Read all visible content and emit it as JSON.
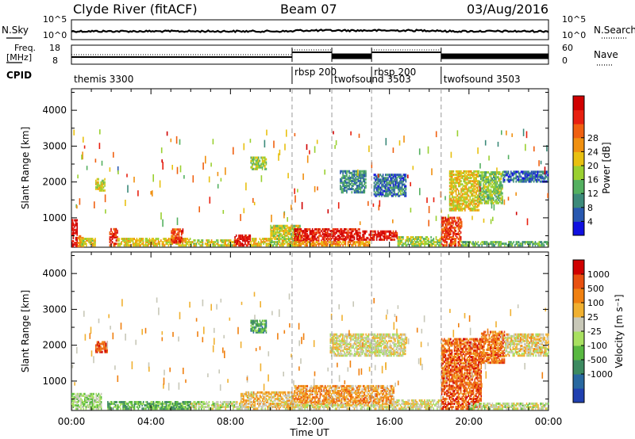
{
  "header": {
    "title": "Clyde River (fitACF)",
    "beam": "Beam 07",
    "date": "03/Aug/2016"
  },
  "strip": {
    "nsky_label": "N.Sky",
    "nsearch_label": "N.Search",
    "freq_label_1": "Freq.",
    "freq_label_2": "[MHz]",
    "nave_label": "Nave",
    "cpid_label": "CPID",
    "nsky_ticks": [
      "10^5",
      "10^0"
    ],
    "nsearch_ticks": [
      "10^5",
      "10^0"
    ],
    "freq_ticks": [
      "18",
      "8"
    ],
    "nave_ticks": [
      "60",
      "0"
    ],
    "cpid_segments": [
      {
        "label": "themis 3300",
        "start_h": 0,
        "end_h": 11.1
      },
      {
        "label": "rbsp 200",
        "start_h": 11.1,
        "end_h": 13.1
      },
      {
        "label": "twofsound 3503",
        "start_h": 13.1,
        "end_h": 15.1
      },
      {
        "label": "rbsp 200",
        "start_h": 15.1,
        "end_h": 18.6
      },
      {
        "label": "twofsound 3503",
        "start_h": 18.6,
        "end_h": 24
      }
    ]
  },
  "axes": {
    "ylabel": "Slant Range [km]",
    "xlabel": "Time UT",
    "xticks": [
      "00:00",
      "04:00",
      "08:00",
      "12:00",
      "16:00",
      "20:00",
      "00:00"
    ],
    "yticks": [
      "1000",
      "2000",
      "3000",
      "4000"
    ]
  },
  "chart_data": [
    {
      "type": "heatmap",
      "name": "power",
      "xlabel": "Time UT",
      "ylabel": "Slant Range [km]",
      "xlim_hours": [
        0,
        24
      ],
      "ylim_km": [
        180,
        4600
      ],
      "colorbar": {
        "label": "Power [dB]",
        "ticks": [
          "4",
          "8",
          "12",
          "16",
          "20",
          "24",
          "28"
        ],
        "colors": [
          "#1010e0",
          "#2858b0",
          "#3c8a7a",
          "#54b060",
          "#9ad030",
          "#e8c010",
          "#f09010",
          "#f06010",
          "#e82010",
          "#d00000"
        ]
      },
      "regions": [
        {
          "t0": 0.0,
          "t1": 0.3,
          "r0": 200,
          "r1": 950,
          "level": 0.95
        },
        {
          "t0": 0.3,
          "t1": 0.6,
          "r0": 200,
          "r1": 500,
          "level": 0.7
        },
        {
          "t0": 0.4,
          "t1": 1.2,
          "r0": 220,
          "r1": 420,
          "level": 0.5
        },
        {
          "t0": 1.2,
          "t1": 1.7,
          "r0": 1750,
          "r1": 2100,
          "level": 0.5
        },
        {
          "t0": 1.9,
          "t1": 2.3,
          "r0": 220,
          "r1": 700,
          "level": 0.85
        },
        {
          "t0": 2.3,
          "t1": 6.0,
          "r0": 220,
          "r1": 420,
          "level": 0.55
        },
        {
          "t0": 5.0,
          "t1": 5.6,
          "r0": 300,
          "r1": 700,
          "level": 0.8
        },
        {
          "t0": 6.0,
          "t1": 8.2,
          "r0": 220,
          "r1": 400,
          "level": 0.5
        },
        {
          "t0": 8.2,
          "t1": 9.0,
          "r0": 220,
          "r1": 500,
          "level": 0.9
        },
        {
          "t0": 9.0,
          "t1": 9.8,
          "r0": 2350,
          "r1": 2700,
          "level": 0.45
        },
        {
          "t0": 9.0,
          "t1": 10.0,
          "r0": 220,
          "r1": 420,
          "level": 0.55
        },
        {
          "t0": 10.0,
          "t1": 11.5,
          "r0": 220,
          "r1": 800,
          "level": 0.5
        },
        {
          "t0": 11.2,
          "t1": 14.5,
          "r0": 350,
          "r1": 700,
          "level": 0.9
        },
        {
          "t0": 11.2,
          "t1": 15.0,
          "r0": 220,
          "r1": 350,
          "level": 0.65
        },
        {
          "t0": 14.5,
          "t1": 16.4,
          "r0": 380,
          "r1": 650,
          "level": 0.92
        },
        {
          "t0": 13.5,
          "t1": 14.8,
          "r0": 1700,
          "r1": 2300,
          "level": 0.25
        },
        {
          "t0": 15.2,
          "t1": 16.8,
          "r0": 1600,
          "r1": 2200,
          "level": 0.2
        },
        {
          "t0": 16.4,
          "t1": 18.6,
          "r0": 220,
          "r1": 450,
          "level": 0.45
        },
        {
          "t0": 18.6,
          "t1": 19.6,
          "r0": 220,
          "r1": 1000,
          "level": 0.8
        },
        {
          "t0": 19.0,
          "t1": 20.5,
          "r0": 1200,
          "r1": 2300,
          "level": 0.55
        },
        {
          "t0": 20.5,
          "t1": 21.7,
          "r0": 1400,
          "r1": 2300,
          "level": 0.4
        },
        {
          "t0": 21.7,
          "t1": 24.0,
          "r0": 2000,
          "r1": 2300,
          "level": 0.18
        },
        {
          "t0": 19.6,
          "t1": 24.0,
          "r0": 220,
          "r1": 350,
          "level": 0.35
        }
      ]
    },
    {
      "type": "heatmap",
      "name": "velocity",
      "xlabel": "Time UT",
      "ylabel": "Slant Range [km]",
      "xlim_hours": [
        0,
        24
      ],
      "ylim_km": [
        180,
        4600
      ],
      "colorbar": {
        "label": "Velocity [m s⁻¹]",
        "ticks": [
          "1000",
          "500",
          "100",
          "25",
          "-25",
          "-100",
          "-500",
          "-1000"
        ],
        "colors": [
          "#2040b0",
          "#2868a0",
          "#3c8a60",
          "#58b840",
          "#a8e060",
          "#c8c8b8",
          "#f0b030",
          "#f08010",
          "#e85010",
          "#d00000"
        ]
      },
      "regions": [
        {
          "t0": 0.0,
          "t1": 1.5,
          "r0": 220,
          "r1": 650,
          "level": 0.45
        },
        {
          "t0": 1.2,
          "t1": 1.8,
          "r0": 1800,
          "r1": 2100,
          "level": 0.85
        },
        {
          "t0": 1.8,
          "t1": 6.0,
          "r0": 220,
          "r1": 420,
          "level": 0.35
        },
        {
          "t0": 6.0,
          "t1": 8.5,
          "r0": 220,
          "r1": 420,
          "level": 0.5
        },
        {
          "t0": 9.0,
          "t1": 9.8,
          "r0": 2350,
          "r1": 2700,
          "level": 0.3
        },
        {
          "t0": 8.5,
          "t1": 11.2,
          "r0": 220,
          "r1": 700,
          "level": 0.62
        },
        {
          "t0": 11.2,
          "t1": 16.2,
          "r0": 350,
          "r1": 850,
          "level": 0.7
        },
        {
          "t0": 11.2,
          "t1": 16.2,
          "r0": 220,
          "r1": 350,
          "level": 0.55
        },
        {
          "t0": 13.0,
          "t1": 16.8,
          "r0": 1700,
          "r1": 2300,
          "level": 0.55
        },
        {
          "t0": 16.2,
          "t1": 18.6,
          "r0": 220,
          "r1": 450,
          "level": 0.55
        },
        {
          "t0": 18.6,
          "t1": 20.6,
          "r0": 220,
          "r1": 2200,
          "level": 0.82
        },
        {
          "t0": 20.6,
          "t1": 21.8,
          "r0": 1500,
          "r1": 2400,
          "level": 0.78
        },
        {
          "t0": 21.8,
          "t1": 24.0,
          "r0": 1700,
          "r1": 2300,
          "level": 0.58
        },
        {
          "t0": 20.0,
          "t1": 24.0,
          "r0": 220,
          "r1": 400,
          "level": 0.5
        }
      ]
    }
  ]
}
